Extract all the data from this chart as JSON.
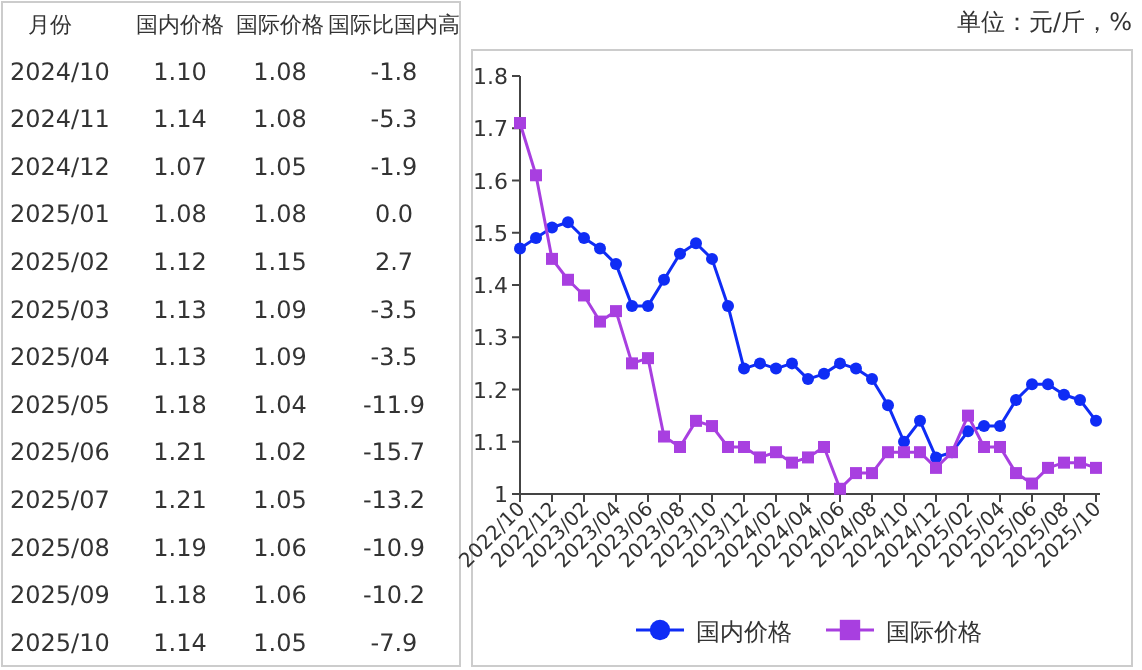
{
  "chart_data": [
    {
      "type": "heatmap",
      "ylabel": "月份",
      "categories": [
        "国内价格",
        "国际价格",
        "国际比国内高"
      ],
      "y_categories": [
        "2024/10",
        "2024/11",
        "2024/12",
        "2025/01",
        "2025/02",
        "2025/03",
        "2025/04",
        "2025/05",
        "2025/06",
        "2025/07",
        "2025/08",
        "2025/09",
        "2025/10"
      ],
      "cells": [
        [
          1.1,
          1.08,
          -1.8
        ],
        [
          1.14,
          1.08,
          -5.3
        ],
        [
          1.07,
          1.05,
          -1.9
        ],
        [
          1.08,
          1.08,
          0.0
        ],
        [
          1.12,
          1.15,
          2.7
        ],
        [
          1.13,
          1.09,
          -3.5
        ],
        [
          1.13,
          1.09,
          -3.5
        ],
        [
          1.18,
          1.04,
          -11.9
        ],
        [
          1.21,
          1.02,
          -15.7
        ],
        [
          1.21,
          1.05,
          -13.2
        ],
        [
          1.19,
          1.06,
          -10.9
        ],
        [
          1.18,
          1.06,
          -10.2
        ],
        [
          1.14,
          1.05,
          -7.9
        ]
      ],
      "cell_labels": [
        [
          "1.10",
          "1.08",
          "-1.8"
        ],
        [
          "1.14",
          "1.08",
          "-5.3"
        ],
        [
          "1.07",
          "1.05",
          "-1.9"
        ],
        [
          "1.08",
          "1.08",
          "0.0"
        ],
        [
          "1.12",
          "1.15",
          "2.7"
        ],
        [
          "1.13",
          "1.09",
          "-3.5"
        ],
        [
          "1.13",
          "1.09",
          "-3.5"
        ],
        [
          "1.18",
          "1.04",
          "-11.9"
        ],
        [
          "1.21",
          "1.02",
          "-15.7"
        ],
        [
          "1.21",
          "1.05",
          "-13.2"
        ],
        [
          "1.19",
          "1.06",
          "-10.9"
        ],
        [
          "1.18",
          "1.06",
          "-10.2"
        ],
        [
          "1.14",
          "1.05",
          "-7.9"
        ]
      ]
    },
    {
      "type": "line",
      "annotations": [
        "单位：元/斤，%"
      ],
      "categories": [
        "2022/10",
        null,
        "2022/12",
        null,
        "2023/02",
        null,
        "2023/04",
        null,
        "2023/06",
        null,
        "2023/08",
        null,
        "2023/10",
        null,
        "2023/12",
        null,
        "2024/02",
        null,
        "2024/04",
        null,
        "2024/06",
        null,
        "2024/08",
        null,
        "2024/10",
        null,
        "2024/12",
        null,
        "2025/02",
        null,
        "2025/04",
        null,
        "2025/06",
        null,
        "2025/08",
        null,
        "2025/10"
      ],
      "series": [
        {
          "name": "国内价格",
          "color": "#0f2cf5",
          "marker": "circle",
          "values": [
            1.47,
            1.49,
            1.51,
            1.52,
            1.49,
            1.47,
            1.44,
            1.36,
            1.36,
            1.41,
            1.46,
            1.48,
            1.45,
            1.36,
            1.24,
            1.25,
            1.24,
            1.25,
            1.22,
            1.23,
            1.25,
            1.24,
            1.22,
            1.17,
            1.1,
            1.14,
            1.07,
            1.08,
            1.12,
            1.13,
            1.13,
            1.18,
            1.21,
            1.21,
            1.19,
            1.18,
            1.14
          ]
        },
        {
          "name": "国际价格",
          "color": "#a83fe0",
          "marker": "square",
          "values": [
            1.71,
            1.61,
            1.45,
            1.41,
            1.38,
            1.33,
            1.35,
            1.25,
            1.26,
            1.11,
            1.09,
            1.14,
            1.13,
            1.09,
            1.09,
            1.07,
            1.08,
            1.06,
            1.07,
            1.09,
            1.01,
            1.04,
            1.04,
            1.08,
            1.08,
            1.08,
            1.05,
            1.08,
            1.15,
            1.09,
            1.09,
            1.04,
            1.02,
            1.05,
            1.06,
            1.06,
            1.05
          ]
        }
      ],
      "ylim": [
        1,
        1.8
      ],
      "yticks": [
        1,
        1.1,
        1.2,
        1.3,
        1.4,
        1.5,
        1.6,
        1.7,
        1.8
      ],
      "legend": "bottom"
    }
  ]
}
